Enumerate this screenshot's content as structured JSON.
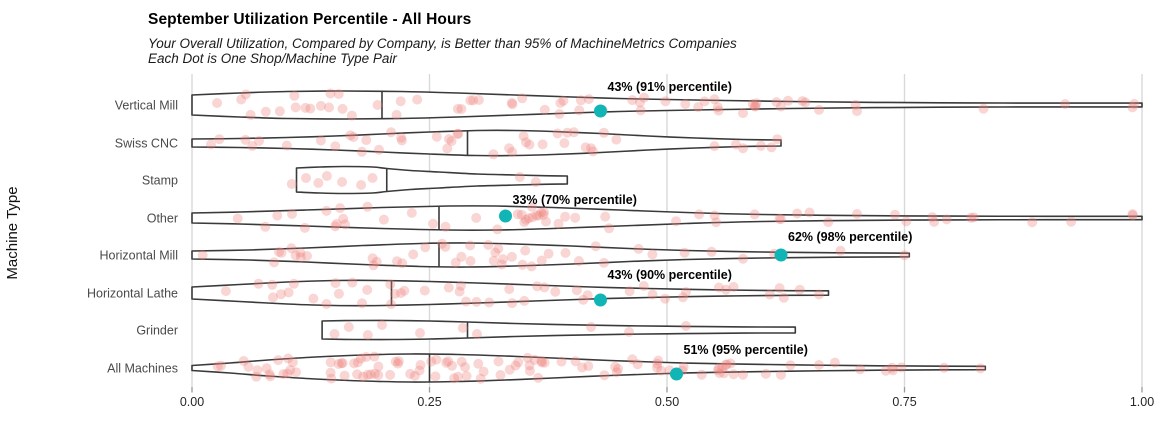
{
  "header": {
    "title": "September Utilization Percentile - All Hours",
    "subtitle_line1": "Your Overall Utilization, Compared by Company, is Better than 95% of MachineMetrics Companies",
    "subtitle_line2": "Each Dot is One Shop/Machine Type Pair"
  },
  "colors": {
    "violin_fill": "#ffffff",
    "violin_stroke": "#3a3a3a",
    "gridline": "#d9d9d9",
    "tick_mark": "#999999",
    "tick_label": "#262626",
    "category_label": "#4a4a4a",
    "annotation_text": "#000000",
    "company_dot": "#12b5b5",
    "jitter_dot": "#ee847c",
    "jitter_dot_opacity": 0.33
  },
  "chart_data": {
    "type": "violin",
    "title": "September Utilization Percentile - All Hours",
    "xlabel": "",
    "ylabel": "Machine Type",
    "xlim": [
      0,
      1
    ],
    "grid": "vertical-only",
    "x_ticks": {
      "values": [
        0,
        0.25,
        0.5,
        0.75,
        1.0
      ],
      "labels": [
        "0.00",
        "0.25",
        "0.50",
        "0.75",
        "1.00"
      ]
    },
    "categories": [
      "Vertical Mill",
      "Swiss CNC",
      "Stamp",
      "Other",
      "Horizontal Mill",
      "Horizontal Lathe",
      "Grinder",
      "All Machines"
    ],
    "series": [
      {
        "name": "Vertical Mill",
        "range": [
          0,
          1.0
        ],
        "median": 0.2,
        "profile": [
          [
            0,
            10
          ],
          [
            0.05,
            12
          ],
          [
            0.1,
            13.5
          ],
          [
            0.16,
            14
          ],
          [
            0.22,
            13.5
          ],
          [
            0.28,
            12
          ],
          [
            0.34,
            10
          ],
          [
            0.4,
            8
          ],
          [
            0.45,
            6.5
          ],
          [
            0.5,
            5.5
          ],
          [
            0.56,
            4.5
          ],
          [
            0.63,
            3.5
          ],
          [
            0.72,
            2.6
          ],
          [
            0.82,
            2.1
          ],
          [
            0.92,
            1.9
          ],
          [
            1.0,
            1.9
          ]
        ],
        "dot_count": 58,
        "dot_seed": 101,
        "outlier_dots": [
          0.55,
          0.58,
          0.62,
          0.66,
          0.7,
          0.99
        ],
        "company_value": 0.43,
        "company_dy": 6,
        "annotation": "43% (91% percentile)"
      },
      {
        "name": "Swiss CNC",
        "range": [
          0,
          0.62
        ],
        "median": 0.29,
        "profile": [
          [
            0,
            4
          ],
          [
            0.05,
            4.5
          ],
          [
            0.1,
            5.5
          ],
          [
            0.15,
            7
          ],
          [
            0.2,
            9
          ],
          [
            0.25,
            11
          ],
          [
            0.3,
            12.5
          ],
          [
            0.34,
            12.5
          ],
          [
            0.38,
            11.5
          ],
          [
            0.43,
            9.5
          ],
          [
            0.48,
            7
          ],
          [
            0.53,
            5
          ],
          [
            0.58,
            3.5
          ],
          [
            0.62,
            3
          ]
        ],
        "dot_count": 40,
        "dot_seed": 202,
        "outlier_dots": [
          0.02,
          0.55,
          0.58,
          0.61
        ]
      },
      {
        "name": "Stamp",
        "range": [
          0.11,
          0.395
        ],
        "median": 0.205,
        "profile": [
          [
            0.11,
            12
          ],
          [
            0.135,
            13
          ],
          [
            0.16,
            13.5
          ],
          [
            0.19,
            13
          ],
          [
            0.205,
            11.5
          ],
          [
            0.23,
            9.5
          ],
          [
            0.26,
            8
          ],
          [
            0.3,
            6
          ],
          [
            0.34,
            5
          ],
          [
            0.37,
            4.3
          ],
          [
            0.395,
            4
          ]
        ],
        "dots": [
          [
            0.105,
            4
          ],
          [
            0.12,
            -2
          ],
          [
            0.133,
            3
          ],
          [
            0.142,
            -4
          ],
          [
            0.158,
            2
          ],
          [
            0.178,
            5
          ],
          [
            0.19,
            -2
          ],
          [
            0.345,
            -3
          ],
          [
            0.362,
            2
          ]
        ]
      },
      {
        "name": "Other",
        "range": [
          0,
          1.0
        ],
        "median": 0.26,
        "profile": [
          [
            0,
            5
          ],
          [
            0.05,
            6
          ],
          [
            0.12,
            8
          ],
          [
            0.2,
            10.5
          ],
          [
            0.27,
            12
          ],
          [
            0.32,
            12
          ],
          [
            0.38,
            10.5
          ],
          [
            0.45,
            8
          ],
          [
            0.52,
            5.5
          ],
          [
            0.6,
            3.5
          ],
          [
            0.7,
            2.4
          ],
          [
            0.8,
            1.9
          ],
          [
            0.9,
            1.7
          ],
          [
            1.0,
            1.7
          ]
        ],
        "dot_count": 52,
        "dot_seed": 303,
        "outlier_dots": [
          0.62,
          0.65,
          0.7,
          0.74,
          0.82,
          0.99
        ],
        "company_value": 0.33,
        "company_dy": -2,
        "annotation": "33% (70% percentile)"
      },
      {
        "name": "Horizontal Mill",
        "range": [
          0,
          0.755
        ],
        "median": 0.26,
        "profile": [
          [
            0,
            4
          ],
          [
            0.06,
            5
          ],
          [
            0.12,
            7
          ],
          [
            0.18,
            9.5
          ],
          [
            0.24,
            11.5
          ],
          [
            0.29,
            12
          ],
          [
            0.34,
            11
          ],
          [
            0.4,
            9
          ],
          [
            0.46,
            6.5
          ],
          [
            0.52,
            4.5
          ],
          [
            0.6,
            3
          ],
          [
            0.68,
            2.2
          ],
          [
            0.755,
            1.8
          ]
        ],
        "dot_count": 44,
        "dot_seed": 404,
        "outlier_dots": [
          0.58,
          0.62,
          0.75
        ],
        "company_value": 0.62,
        "company_dy": 0,
        "annotation": "62% (98% percentile)"
      },
      {
        "name": "Horizontal Lathe",
        "range": [
          0,
          0.67
        ],
        "median": 0.21,
        "profile": [
          [
            0,
            6
          ],
          [
            0.05,
            8.5
          ],
          [
            0.1,
            11
          ],
          [
            0.15,
            12.5
          ],
          [
            0.2,
            12.5
          ],
          [
            0.25,
            11.5
          ],
          [
            0.3,
            10
          ],
          [
            0.36,
            8
          ],
          [
            0.42,
            6
          ],
          [
            0.48,
            4.5
          ],
          [
            0.55,
            3.2
          ],
          [
            0.62,
            2.4
          ],
          [
            0.67,
            2.2
          ]
        ],
        "dot_count": 46,
        "dot_seed": 505,
        "outlier_dots": [
          0.52,
          0.57,
          0.66
        ],
        "company_value": 0.43,
        "company_dy": 7,
        "annotation": "43% (90% percentile)"
      },
      {
        "name": "Grinder",
        "range": [
          0.137,
          0.635
        ],
        "median": 0.29,
        "profile": [
          [
            0.137,
            9
          ],
          [
            0.17,
            9.5
          ],
          [
            0.21,
            9.5
          ],
          [
            0.25,
            9
          ],
          [
            0.29,
            8
          ],
          [
            0.34,
            6.5
          ],
          [
            0.4,
            5.2
          ],
          [
            0.46,
            4.2
          ],
          [
            0.52,
            3.6
          ],
          [
            0.58,
            3.1
          ],
          [
            0.635,
            2.9
          ]
        ],
        "dots": [
          [
            0.15,
            4
          ],
          [
            0.165,
            -3
          ],
          [
            0.185,
            5
          ],
          [
            0.2,
            -5
          ],
          [
            0.24,
            3
          ],
          [
            0.285,
            -2
          ],
          [
            0.3,
            4
          ],
          [
            0.42,
            -3
          ],
          [
            0.46,
            2
          ],
          [
            0.52,
            -4
          ]
        ]
      },
      {
        "name": "All Machines",
        "range": [
          0,
          0.835
        ],
        "median": 0.25,
        "profile": [
          [
            0,
            2.5
          ],
          [
            0.04,
            5
          ],
          [
            0.08,
            8
          ],
          [
            0.13,
            11
          ],
          [
            0.18,
            13
          ],
          [
            0.23,
            14
          ],
          [
            0.28,
            13.5
          ],
          [
            0.33,
            12
          ],
          [
            0.38,
            10
          ],
          [
            0.44,
            7.5
          ],
          [
            0.5,
            5.5
          ],
          [
            0.56,
            4.2
          ],
          [
            0.63,
            3.2
          ],
          [
            0.7,
            2.4
          ],
          [
            0.77,
            1.9
          ],
          [
            0.835,
            1.7
          ]
        ],
        "dot_count": 105,
        "dot_seed": 606,
        "outlier_dots": [
          0.56,
          0.58,
          0.62,
          0.66,
          0.83
        ],
        "company_value": 0.51,
        "company_dy": 6,
        "annotation": "51% (95% percentile)"
      }
    ]
  }
}
